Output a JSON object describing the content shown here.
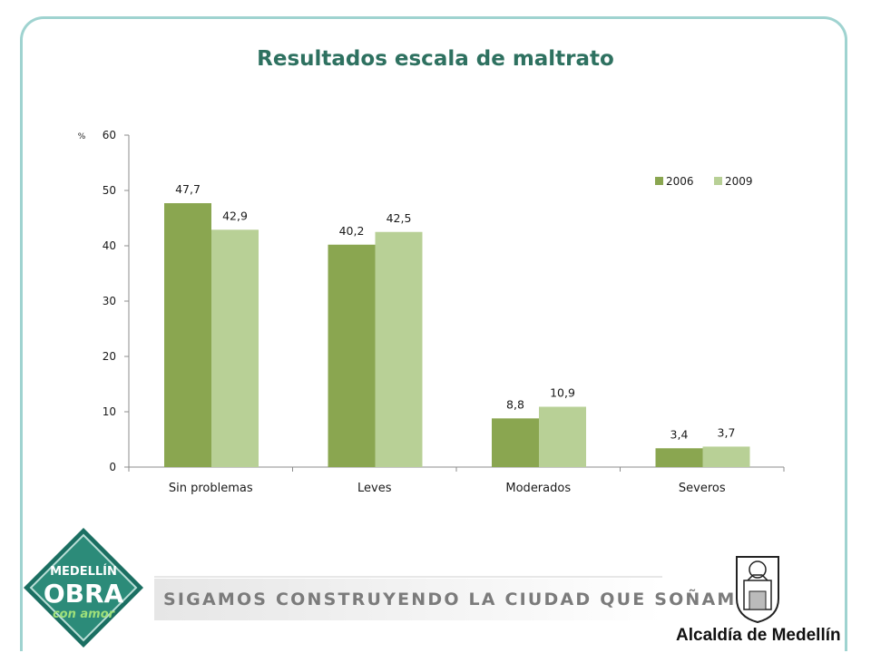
{
  "slide": {
    "title": "Resultados escala de maltrato",
    "slogan": "SIGAMOS CONSTRUYENDO LA CIUDAD QUE SOÑAMOS",
    "logo_left": {
      "line1": "MEDELLÍN",
      "line2": "OBRA",
      "line3": "con amor"
    },
    "logo_right_text": "Alcaldía de Medellín",
    "colors": {
      "series_2006": "#8aa650",
      "series_2009": "#b8d096",
      "title": "#2e7160",
      "frame": "#9fd3d0"
    }
  },
  "chart_data": {
    "type": "bar",
    "title": "Resultados escala de maltrato",
    "ylabel": "%",
    "xlabel": "",
    "categories": [
      "Sin problemas",
      "Leves",
      "Moderados",
      "Severos"
    ],
    "series": [
      {
        "name": "2006",
        "values": [
          47.7,
          40.2,
          8.8,
          3.4
        ],
        "labels": [
          "47,7",
          "40,2",
          "8,8",
          "3,4"
        ],
        "color": "#8aa650"
      },
      {
        "name": "2009",
        "values": [
          42.9,
          42.5,
          10.9,
          3.7
        ],
        "labels": [
          "42,9",
          "42,5",
          "10,9",
          "3,7"
        ],
        "color": "#b8d096"
      }
    ],
    "ylim": [
      0,
      60
    ],
    "yticks": [
      0,
      10,
      20,
      30,
      40,
      50,
      60
    ],
    "legend": "top-right",
    "grid": false
  }
}
